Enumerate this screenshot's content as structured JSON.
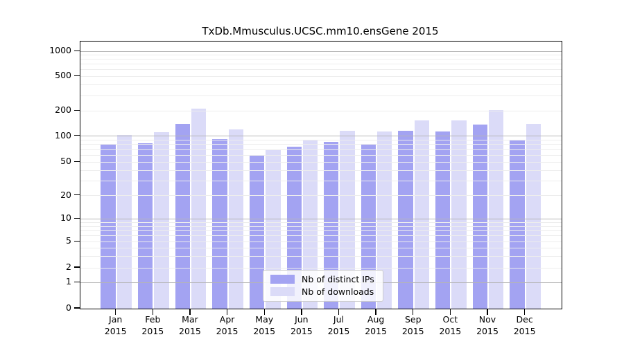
{
  "chart_data": {
    "type": "bar",
    "title": "TxDb.Mmusculus.UCSC.mm10.ensGene 2015",
    "months": [
      "Jan",
      "Feb",
      "Mar",
      "Apr",
      "May",
      "Jun",
      "Jul",
      "Aug",
      "Sep",
      "Oct",
      "Nov",
      "Dec"
    ],
    "year": "2015",
    "series": [
      {
        "name": "Nb of distinct IPs",
        "color": "#a3a3f2",
        "values": [
          80,
          82,
          139,
          93,
          60,
          76,
          86,
          79,
          116,
          113,
          137,
          89
        ]
      },
      {
        "name": "Nb of downloads",
        "color": "#dbdbf8",
        "values": [
          104,
          112,
          215,
          120,
          69,
          91,
          115,
          113,
          155,
          155,
          204,
          140
        ]
      }
    ],
    "y_axis": {
      "scale": "symlog",
      "tick_labels": [
        1000,
        500,
        200,
        100,
        50,
        20,
        10,
        5,
        2,
        1,
        0
      ],
      "major_gridlines": [
        1,
        10,
        100,
        1000
      ],
      "minor_gridlines": [
        2,
        3,
        4,
        5,
        6,
        7,
        8,
        9,
        20,
        30,
        40,
        50,
        60,
        70,
        80,
        90,
        200,
        300,
        400,
        500,
        600,
        700,
        800,
        900
      ],
      "ylim": [
        0,
        1300
      ]
    },
    "legend": {
      "position": "lower center"
    }
  },
  "colors": {
    "grid_minor": "#ededed",
    "grid_major": "#b5b5b5",
    "axis": "#000000",
    "legend_border": "#cccccc"
  }
}
